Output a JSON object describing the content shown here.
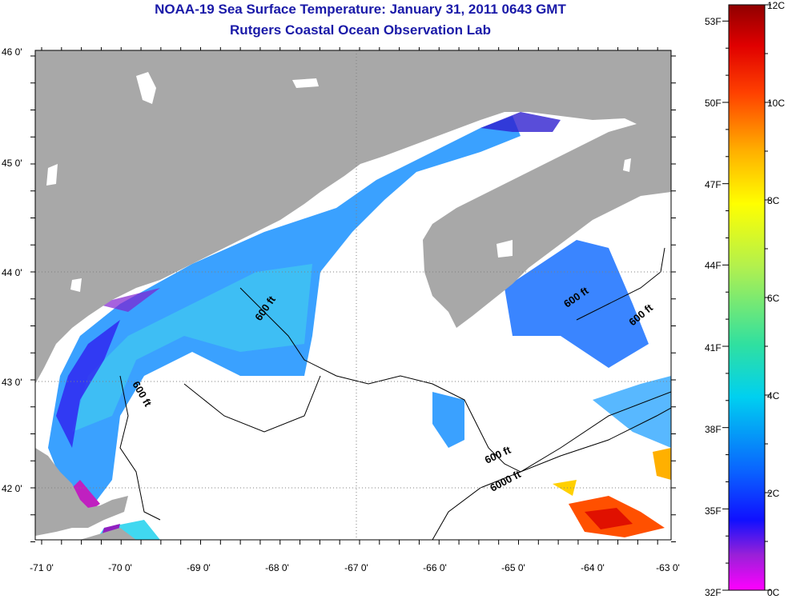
{
  "header": {
    "title": "NOAA-19 Sea Surface Temperature:  January 31, 2011 0643 GMT",
    "subtitle": "Rutgers Coastal Ocean Observation Lab"
  },
  "map": {
    "lon_labels": [
      "-71 0'",
      "-70 0'",
      "-69 0'",
      "-68 0'",
      "-67 0'",
      "-66 0'",
      "-65 0'",
      "-64 0'",
      "-63 0'"
    ],
    "lat_labels": [
      "46 0'",
      "45 0'",
      "44 0'",
      "43 0'",
      "42 0'"
    ],
    "contour_labels": [
      "600 ft",
      "600 ft",
      "600 ft",
      "600 ft",
      "600 ft",
      "6000 ft"
    ],
    "colors": {
      "land": "#a8a8a8",
      "cloud_or_no_data": "#ffffff",
      "contour": "#000000"
    }
  },
  "colorbar": {
    "fahrenheit_labels": [
      "53F",
      "50F",
      "47F",
      "44F",
      "41F",
      "38F",
      "35F",
      "32F"
    ],
    "celsius_labels": [
      "12C",
      "10C",
      "8C",
      "6C",
      "4C",
      "2C",
      "0C"
    ],
    "range_c": [
      0,
      12
    ],
    "range_f": [
      32,
      53.6
    ],
    "gradient_stops": [
      "#ff00ff",
      "#7a1cc8",
      "#1010ff",
      "#0a70ff",
      "#00d0f0",
      "#30e0a0",
      "#b0f050",
      "#ffff00",
      "#ffb000",
      "#ff4000",
      "#e00000",
      "#900000"
    ]
  }
}
